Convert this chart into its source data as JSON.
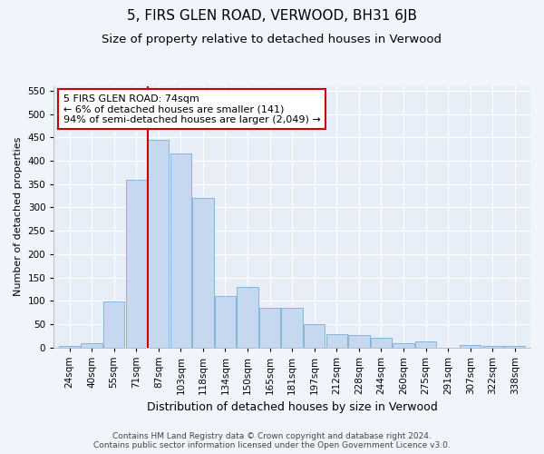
{
  "title": "5, FIRS GLEN ROAD, VERWOOD, BH31 6JB",
  "subtitle": "Size of property relative to detached houses in Verwood",
  "xlabel": "Distribution of detached houses by size in Verwood",
  "ylabel": "Number of detached properties",
  "bar_color": "#c5d8f0",
  "bar_edge_color": "#7aadd4",
  "background_color": "#f0f4fb",
  "plot_bg_color": "#e8eef8",
  "categories": [
    "24sqm",
    "40sqm",
    "55sqm",
    "71sqm",
    "87sqm",
    "103sqm",
    "118sqm",
    "134sqm",
    "150sqm",
    "165sqm",
    "181sqm",
    "197sqm",
    "212sqm",
    "228sqm",
    "244sqm",
    "260sqm",
    "275sqm",
    "291sqm",
    "307sqm",
    "322sqm",
    "338sqm"
  ],
  "values": [
    2,
    8,
    98,
    360,
    445,
    415,
    320,
    110,
    130,
    85,
    85,
    50,
    28,
    26,
    20,
    8,
    12,
    0,
    5,
    2,
    3
  ],
  "vline_x": 3.5,
  "vline_color": "#cc0000",
  "annotation_text": "5 FIRS GLEN ROAD: 74sqm\n← 6% of detached houses are smaller (141)\n94% of semi-detached houses are larger (2,049) →",
  "annotation_box_color": "#ffffff",
  "annotation_border_color": "#cc0000",
  "ylim": [
    0,
    560
  ],
  "yticks": [
    0,
    50,
    100,
    150,
    200,
    250,
    300,
    350,
    400,
    450,
    500,
    550
  ],
  "footer": "Contains HM Land Registry data © Crown copyright and database right 2024.\nContains public sector information licensed under the Open Government Licence v3.0.",
  "title_fontsize": 11,
  "subtitle_fontsize": 9.5,
  "xlabel_fontsize": 9,
  "ylabel_fontsize": 8,
  "tick_fontsize": 7.5,
  "footer_fontsize": 6.5,
  "annot_fontsize": 8
}
